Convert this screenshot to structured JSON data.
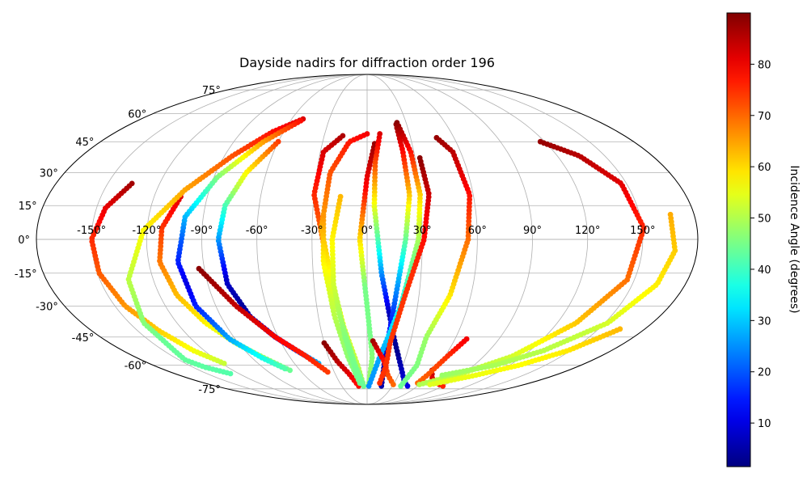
{
  "chart_data": {
    "type": "scatter",
    "projection": "mollweide",
    "title": "Dayside nadirs for diffraction order 196",
    "grid": true,
    "x_unit": "longitude (degrees)",
    "y_unit": "latitude (degrees)",
    "lon_ticks": [
      -150,
      -120,
      -90,
      -60,
      -30,
      0,
      30,
      60,
      90,
      120,
      150
    ],
    "lon_tick_labels": [
      "-150°",
      "-120°",
      "-90°",
      "-60°",
      "-30°",
      "0°",
      "30°",
      "60°",
      "90°",
      "120°",
      "150°"
    ],
    "lat_ticks": [
      75,
      60,
      45,
      30,
      15,
      0,
      -15,
      -30,
      -45,
      -60,
      -75
    ],
    "lat_tick_labels": [
      "75°",
      "60°",
      "45°",
      "30°",
      "15°",
      "0°",
      "-15°",
      "-30°",
      "-45°",
      "-60°",
      "-75°"
    ],
    "colorbar": {
      "label": "Incidence Angle (degrees)",
      "colormap": "jet",
      "range": [
        1.5,
        90
      ],
      "ticks": [
        10,
        20,
        30,
        40,
        50,
        60,
        70,
        80
      ],
      "tick_labels": [
        "10",
        "20",
        "30",
        "40",
        "50",
        "60",
        "70",
        "80"
      ]
    },
    "series": [
      {
        "lat_range": [
          25,
          -59
        ],
        "incidence": [
          87,
          76,
          68,
          60,
          52
        ]
      },
      {
        "lat_range": [
          19,
          -52
        ],
        "incidence": [
          82,
          72,
          64,
          58,
          50,
          44
        ]
      },
      {
        "lat_range": [
          57,
          -65
        ],
        "incidence": [
          82,
          72,
          62,
          52,
          44,
          42
        ]
      },
      {
        "lat_range": [
          47,
          -62
        ],
        "incidence": [
          78,
          65,
          50,
          35,
          20,
          10,
          20,
          32,
          42
        ]
      },
      {
        "lat_range": [
          45,
          -48
        ],
        "incidence": [
          74,
          62,
          50,
          36,
          22,
          8,
          4,
          10,
          18,
          28
        ]
      },
      {
        "lat_range": [
          -13,
          -64
        ],
        "incidence": [
          89,
          84,
          79,
          74
        ]
      },
      {
        "lat_range": [
          -48,
          -73
        ],
        "incidence": [
          89,
          84,
          78
        ]
      },
      {
        "lat_range": [
          48,
          -73
        ],
        "incidence": [
          86,
          76,
          66,
          56,
          48
        ]
      },
      {
        "lat_range": [
          49,
          -73
        ],
        "incidence": [
          80,
          70,
          60,
          48,
          44
        ]
      },
      {
        "lat_range": [
          10,
          -71
        ],
        "incidence": [
          66,
          58,
          52,
          48,
          45
        ]
      },
      {
        "lat_range": [
          19,
          -71
        ],
        "incidence": [
          63,
          57,
          52,
          46,
          44
        ]
      },
      {
        "lat_range": [
          44,
          -71
        ],
        "incidence": [
          88,
          78,
          60,
          45,
          45,
          48
        ]
      },
      {
        "lat_range": [
          49,
          -73
        ],
        "incidence": [
          82,
          70,
          55,
          40,
          22,
          6,
          3,
          10
        ]
      },
      {
        "lat_range": [
          54,
          -73
        ],
        "incidence": [
          88,
          75,
          60,
          45,
          30,
          18,
          8,
          5
        ]
      },
      {
        "lat_range": [
          55,
          -73
        ],
        "incidence": [
          89,
          75,
          60,
          50,
          42,
          35,
          28,
          25
        ]
      },
      {
        "lat_range": [
          -47,
          -72
        ],
        "incidence": [
          87,
          80,
          74,
          70
        ]
      },
      {
        "lat_range": [
          37,
          -71
        ],
        "incidence": [
          89,
          80,
          75,
          74,
          75
        ]
      },
      {
        "lat_range": [
          -63,
          -73
        ],
        "incidence": [
          86,
          80,
          76
        ]
      },
      {
        "lat_range": [
          47,
          -73
        ],
        "incidence": [
          88,
          80,
          70,
          60,
          48,
          44
        ]
      },
      {
        "lat_range": [
          -46,
          -71
        ],
        "incidence": [
          80,
          74,
          70
        ]
      },
      {
        "lat_range": [
          45,
          -72
        ],
        "incidence": [
          88,
          82,
          72,
          62,
          52,
          50
        ]
      },
      {
        "lat_range": [
          11,
          -66
        ],
        "incidence": [
          64,
          58,
          52,
          50,
          48
        ]
      },
      {
        "lat_range": [
          -41,
          -72
        ],
        "incidence": [
          63,
          58,
          56,
          54
        ]
      }
    ]
  }
}
